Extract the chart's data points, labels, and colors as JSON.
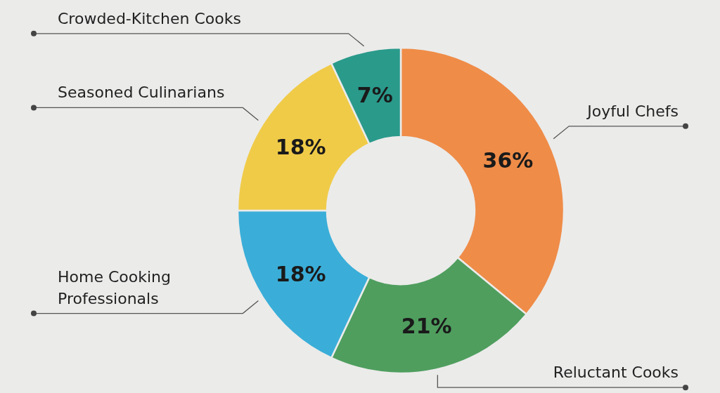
{
  "chart_data": {
    "type": "donut",
    "categories": [
      "Joyful Chefs",
      "Reluctant Cooks",
      "Home Cooking Professionals",
      "Seasoned Culinarians",
      "Crowded-Kitchen Cooks"
    ],
    "values": [
      36,
      21,
      18,
      18,
      7
    ],
    "colors": [
      "#ef8c48",
      "#4f9e5e",
      "#3aaed8",
      "#f0cb48",
      "#2a9a8b"
    ],
    "value_labels": [
      "36%",
      "21%",
      "18%",
      "18%",
      "7%"
    ]
  }
}
